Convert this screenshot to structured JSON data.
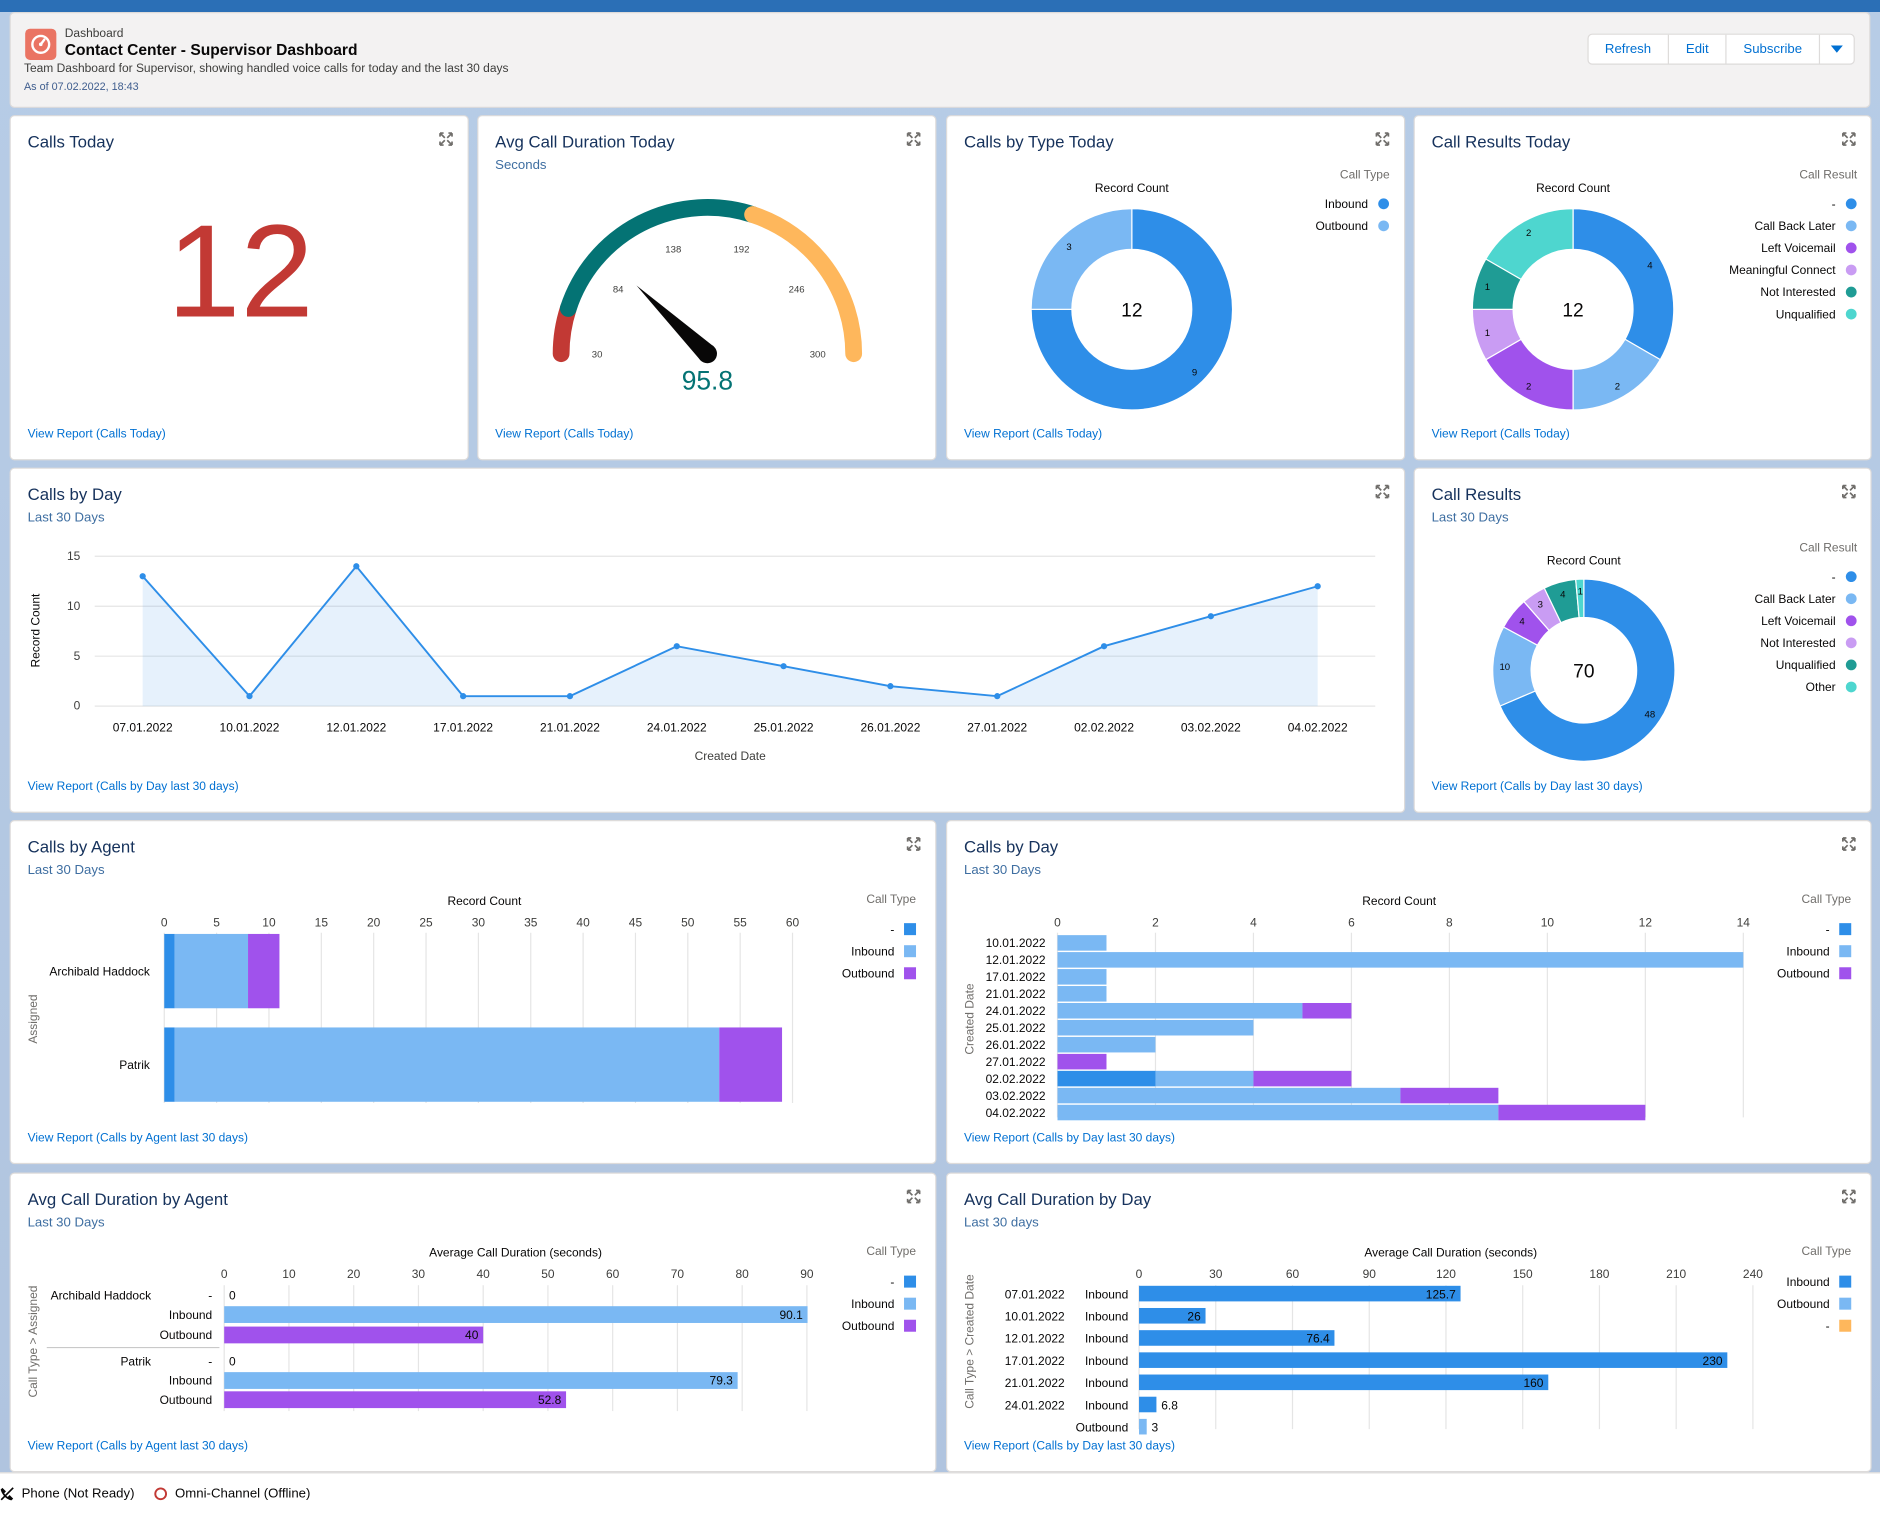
{
  "header": {
    "kicker": "Dashboard",
    "title": "Contact Center - Supervisor Dashboard",
    "description": "Team Dashboard for Supervisor, showing handled voice calls for today and the last 30 days",
    "as_of": "As of 07.02.2022, 18:43",
    "buttons": {
      "refresh": "Refresh",
      "edit": "Edit",
      "subscribe": "Subscribe"
    }
  },
  "colors": {
    "dark_blue": "#2e8ee8",
    "light_blue": "#7ab8f3",
    "purple": "#a052ec",
    "light_purple": "#c99cf3",
    "teal": "#1f9c95",
    "aqua": "#4ed6cf",
    "metric_red": "#c23934",
    "gauge_red": "#c23934",
    "gauge_teal": "#047374",
    "gauge_orange": "#feb75c",
    "link": "#0070d2"
  },
  "calls_today": {
    "title": "Calls Today",
    "value": "12",
    "link": "View Report (Calls Today)"
  },
  "avg_duration_today": {
    "title": "Avg Call Duration Today",
    "subtitle": "Seconds",
    "value": "95.8",
    "ticks": [
      "30",
      "84",
      "138",
      "192",
      "246",
      "300"
    ],
    "link": "View Report (Calls Today)",
    "chart_data": {
      "type": "gauge",
      "min": 30,
      "max": 300,
      "value": 95.8,
      "segments": [
        {
          "to": 57,
          "color": "red"
        },
        {
          "to": 192,
          "color": "teal"
        },
        {
          "to": 300,
          "color": "orange"
        }
      ]
    }
  },
  "calls_by_type_today": {
    "title": "Calls by Type Today",
    "measure": "Record Count",
    "center": "12",
    "legend_title": "Call Type",
    "link": "View Report (Calls Today)",
    "chart_data": {
      "type": "pie",
      "donut": true,
      "slices": [
        {
          "label": "Inbound",
          "value": 9
        },
        {
          "label": "Outbound",
          "value": 3
        }
      ]
    }
  },
  "call_results_today": {
    "title": "Call Results Today",
    "measure": "Record Count",
    "center": "12",
    "legend_title": "Call Result",
    "link": "View Report (Calls Today)",
    "chart_data": {
      "type": "pie",
      "donut": true,
      "slices": [
        {
          "label": "-",
          "value": 4
        },
        {
          "label": "Call Back Later",
          "value": 2
        },
        {
          "label": "Left Voicemail",
          "value": 2
        },
        {
          "label": "Meaningful Connect",
          "value": 1
        },
        {
          "label": "Not Interested",
          "value": 1
        },
        {
          "label": "Unqualified",
          "value": 2
        }
      ]
    }
  },
  "calls_by_day_line": {
    "title": "Calls by Day",
    "subtitle": "Last 30 Days",
    "link": "View Report (Calls by Day last 30 days)",
    "chart_data": {
      "type": "line",
      "xlabel": "Created Date",
      "ylabel": "Record Count",
      "x": [
        "07.01.2022",
        "10.01.2022",
        "12.01.2022",
        "17.01.2022",
        "21.01.2022",
        "24.01.2022",
        "25.01.2022",
        "26.01.2022",
        "27.01.2022",
        "02.02.2022",
        "03.02.2022",
        "04.02.2022"
      ],
      "y": [
        13,
        1,
        14,
        1,
        1,
        6,
        4,
        2,
        1,
        6,
        9,
        12
      ],
      "yticks": [
        "0",
        "5",
        "10",
        "15"
      ],
      "ylim": [
        0,
        15
      ]
    }
  },
  "call_results_30": {
    "title": "Call Results",
    "subtitle": "Last 30 Days",
    "measure": "Record Count",
    "center": "70",
    "legend_title": "Call Result",
    "link": "View Report (Calls by Day last 30 days)",
    "chart_data": {
      "type": "pie",
      "donut": true,
      "slices": [
        {
          "label": "-",
          "value": 48
        },
        {
          "label": "Call Back Later",
          "value": 10
        },
        {
          "label": "Left Voicemail",
          "value": 4
        },
        {
          "label": "Not Interested",
          "value": 3
        },
        {
          "label": "Unqualified",
          "value": 4
        },
        {
          "label": "Other",
          "value": 1
        }
      ]
    }
  },
  "calls_by_agent": {
    "title": "Calls by Agent",
    "subtitle": "Last 30 Days",
    "measure": "Record Count",
    "axis": "Assigned",
    "legend_title": "Call Type",
    "link": "View Report (Calls by Agent last 30 days)",
    "chart_data": {
      "type": "bar",
      "orientation": "horizontal",
      "stacked": true,
      "categories": [
        "Archibald Haddock",
        "Patrik"
      ],
      "series": [
        {
          "name": "-",
          "values": [
            1,
            1
          ]
        },
        {
          "name": "Inbound",
          "values": [
            7,
            52
          ]
        },
        {
          "name": "Outbound",
          "values": [
            3,
            6
          ]
        }
      ],
      "xticks": [
        "0",
        "5",
        "10",
        "15",
        "20",
        "25",
        "30",
        "35",
        "40",
        "45",
        "50",
        "55",
        "60"
      ],
      "xlim": [
        0,
        60
      ]
    }
  },
  "calls_by_day_bar": {
    "title": "Calls by Day",
    "subtitle": "Last 30 Days",
    "measure": "Record Count",
    "axis": "Created Date",
    "legend_title": "Call Type",
    "link": "View Report (Calls by Day last 30 days)",
    "chart_data": {
      "type": "bar",
      "orientation": "horizontal",
      "stacked": true,
      "categories": [
        "10.01.2022",
        "12.01.2022",
        "17.01.2022",
        "21.01.2022",
        "24.01.2022",
        "25.01.2022",
        "26.01.2022",
        "27.01.2022",
        "02.02.2022",
        "03.02.2022",
        "04.02.2022"
      ],
      "series": [
        {
          "name": "-",
          "values": [
            0,
            0,
            0,
            0,
            0,
            0,
            0,
            0,
            2,
            0,
            0
          ]
        },
        {
          "name": "Inbound",
          "values": [
            1,
            14,
            1,
            1,
            5,
            4,
            2,
            0,
            2,
            7,
            9
          ]
        },
        {
          "name": "Outbound",
          "values": [
            0,
            0,
            0,
            0,
            1,
            0,
            0,
            1,
            2,
            2,
            3
          ]
        }
      ],
      "xticks": [
        "0",
        "2",
        "4",
        "6",
        "8",
        "10",
        "12",
        "14"
      ],
      "xlim": [
        0,
        14
      ]
    }
  },
  "avg_by_agent": {
    "title": "Avg Call Duration by Agent",
    "subtitle": "Last 30 Days",
    "measure": "Average Call Duration (seconds)",
    "axis": "Call Type  >  Assigned",
    "legend_title": "Call Type",
    "link": "View Report (Calls by Agent last 30 days)",
    "chart_data": {
      "type": "bar",
      "orientation": "horizontal",
      "grouped": true,
      "rows": [
        {
          "group": "Archibald Haddock",
          "type": "-",
          "value": 0,
          "label": "0"
        },
        {
          "group": "",
          "type": "Inbound",
          "value": 90.1,
          "label": "90.1"
        },
        {
          "group": "",
          "type": "Outbound",
          "value": 40,
          "label": "40"
        },
        {
          "group": "Patrik",
          "type": "-",
          "value": 0,
          "label": "0"
        },
        {
          "group": "",
          "type": "Inbound",
          "value": 79.3,
          "label": "79.3"
        },
        {
          "group": "",
          "type": "Outbound",
          "value": 52.8,
          "label": "52.8"
        }
      ],
      "xticks": [
        "0",
        "10",
        "20",
        "30",
        "40",
        "50",
        "60",
        "70",
        "80",
        "90"
      ],
      "xlim": [
        0,
        90
      ],
      "legend": [
        "-",
        "Inbound",
        "Outbound"
      ]
    }
  },
  "avg_by_day": {
    "title": "Avg Call Duration by Day",
    "subtitle": "Last 30 days",
    "measure": "Average Call Duration (seconds)",
    "axis": "Call Type  >  Created Date",
    "legend_title": "Call Type",
    "link": "View Report (Calls by Day last 30 days)",
    "chart_data": {
      "type": "bar",
      "orientation": "horizontal",
      "grouped": true,
      "rows": [
        {
          "group": "07.01.2022",
          "type": "Inbound",
          "value": 125.7,
          "label": "125.7"
        },
        {
          "group": "10.01.2022",
          "type": "Inbound",
          "value": 26,
          "label": "26"
        },
        {
          "group": "12.01.2022",
          "type": "Inbound",
          "value": 76.4,
          "label": "76.4"
        },
        {
          "group": "17.01.2022",
          "type": "Inbound",
          "value": 230,
          "label": "230"
        },
        {
          "group": "21.01.2022",
          "type": "Inbound",
          "value": 160,
          "label": "160"
        },
        {
          "group": "24.01.2022",
          "type": "Inbound",
          "value": 6.8,
          "label": "6.8"
        },
        {
          "group": "",
          "type": "Outbound",
          "value": 3,
          "label": "3"
        }
      ],
      "xticks": [
        "0",
        "30",
        "60",
        "90",
        "120",
        "150",
        "180",
        "210",
        "240"
      ],
      "xlim": [
        0,
        240
      ],
      "legend": [
        "Inbound",
        "Outbound",
        "-"
      ]
    }
  },
  "footer": {
    "phone": "Phone (Not Ready)",
    "omni": "Omni-Channel (Offline)"
  }
}
